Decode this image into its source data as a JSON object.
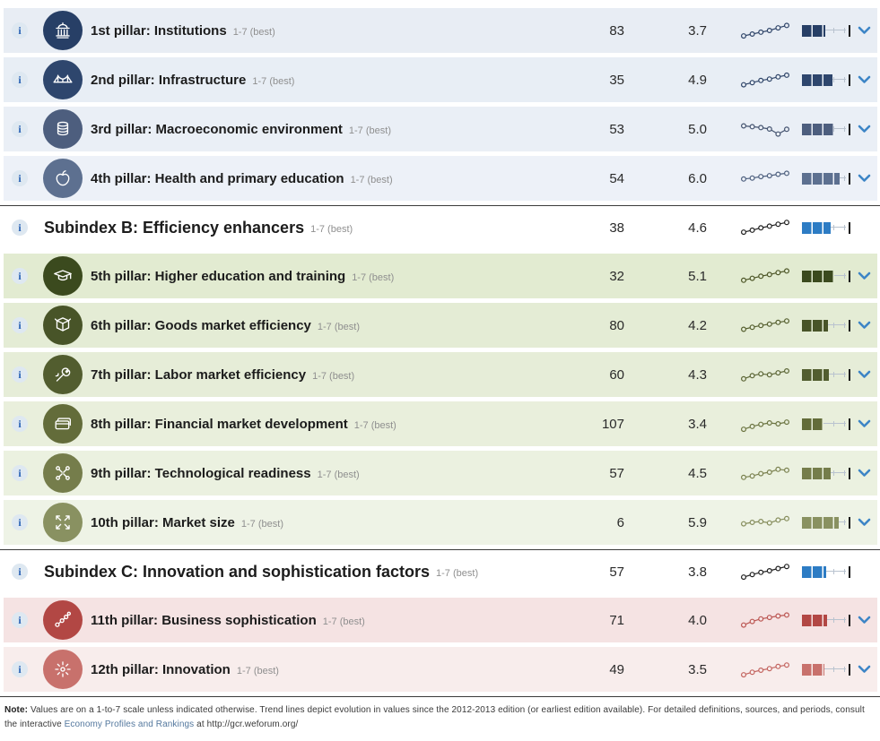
{
  "scale_label": "1-7 (best)",
  "info_label": "i",
  "chevron_color": "#3d85c6",
  "subindex_bar_color": "#2d7cc4",
  "rows": [
    {
      "type": "pillar",
      "label": "1st pillar: Institutions",
      "rank": "83",
      "score": "3.7",
      "icon": "institutions-icon",
      "colors": {
        "circle": "#273f66",
        "row": "#e8edf4",
        "bar": "#273f66",
        "spark": "#2e4468"
      },
      "spark": [
        0.12,
        0.25,
        0.38,
        0.5,
        0.68,
        0.85
      ],
      "chevron": true
    },
    {
      "type": "pillar",
      "label": "2nd pillar: Infrastructure",
      "rank": "35",
      "score": "4.9",
      "icon": "infrastructure-icon",
      "colors": {
        "circle": "#2e466d",
        "row": "#e8eef5",
        "bar": "#2e466d",
        "spark": "#2e4468"
      },
      "spark": [
        0.15,
        0.3,
        0.45,
        0.55,
        0.7,
        0.82
      ],
      "chevron": true
    },
    {
      "type": "pillar",
      "label": "3rd pillar: Macroeconomic environment",
      "rank": "53",
      "score": "5.0",
      "icon": "macroeconomic-icon",
      "colors": {
        "circle": "#4d5e7e",
        "row": "#eaeff6",
        "bar": "#4d5e7e",
        "spark": "#44536f"
      },
      "spark": [
        0.72,
        0.66,
        0.6,
        0.5,
        0.15,
        0.48
      ],
      "chevron": true
    },
    {
      "type": "pillar",
      "label": "4th pillar: Health and primary education",
      "rank": "54",
      "score": "6.0",
      "icon": "health-icon",
      "colors": {
        "circle": "#5d7090",
        "row": "#edf1f8",
        "bar": "#5d7090",
        "spark": "#4d5f7e"
      },
      "spark": [
        0.45,
        0.52,
        0.62,
        0.68,
        0.78,
        0.85
      ],
      "chevron": true
    },
    {
      "type": "subindex",
      "label": "Subindex B: Efficiency enhancers",
      "rank": "38",
      "score": "4.6",
      "colors": {
        "row": "#ffffff",
        "bar": "#2d7cc4",
        "spark": "#1f1f1f"
      },
      "spark": [
        0.18,
        0.32,
        0.48,
        0.6,
        0.74,
        0.86
      ],
      "chevron": false
    },
    {
      "type": "pillar",
      "label": "5th pillar: Higher education and training",
      "rank": "32",
      "score": "5.1",
      "icon": "higher-education-icon",
      "colors": {
        "circle": "#3b4a1e",
        "row": "#e2ebd1",
        "bar": "#3b4a1e",
        "spark": "#4c5526"
      },
      "spark": [
        0.2,
        0.34,
        0.48,
        0.6,
        0.74,
        0.85
      ],
      "chevron": true
    },
    {
      "type": "pillar",
      "label": "6th pillar: Goods market efficiency",
      "rank": "80",
      "score": "4.2",
      "icon": "goods-market-icon",
      "colors": {
        "circle": "#485428",
        "row": "#e4ecd5",
        "bar": "#485428",
        "spark": "#555f2f"
      },
      "spark": [
        0.22,
        0.36,
        0.48,
        0.58,
        0.7,
        0.8
      ],
      "chevron": true
    },
    {
      "type": "pillar",
      "label": "7th pillar: Labor market efficiency",
      "rank": "60",
      "score": "4.3",
      "icon": "labor-market-icon",
      "colors": {
        "circle": "#525d2f",
        "row": "#e6edd8",
        "bar": "#525d2f",
        "spark": "#5c6636"
      },
      "spark": [
        0.2,
        0.42,
        0.55,
        0.48,
        0.62,
        0.75
      ],
      "chevron": true
    },
    {
      "type": "pillar",
      "label": "8th pillar: Financial market development",
      "rank": "107",
      "score": "3.4",
      "icon": "financial-market-icon",
      "colors": {
        "circle": "#636c3a",
        "row": "#e9efdc",
        "bar": "#636c3a",
        "spark": "#6b7441"
      },
      "spark": [
        0.12,
        0.32,
        0.46,
        0.56,
        0.5,
        0.62
      ],
      "chevron": true
    },
    {
      "type": "pillar",
      "label": "9th pillar: Technological readiness",
      "rank": "57",
      "score": "4.5",
      "icon": "technological-icon",
      "colors": {
        "circle": "#757d4b",
        "row": "#ebf1e0",
        "bar": "#757d4b",
        "spark": "#7a814f"
      },
      "spark": [
        0.2,
        0.3,
        0.46,
        0.56,
        0.76,
        0.7
      ],
      "chevron": true
    },
    {
      "type": "pillar",
      "label": "10th pillar: Market size",
      "rank": "6",
      "score": "5.9",
      "icon": "market-size-icon",
      "colors": {
        "circle": "#899161",
        "row": "#eef3e6",
        "bar": "#899161",
        "spark": "#868d5c"
      },
      "spark": [
        0.4,
        0.5,
        0.56,
        0.46,
        0.66,
        0.76
      ],
      "chevron": true
    },
    {
      "type": "subindex",
      "label": "Subindex C: Innovation and sophistication factors",
      "rank": "57",
      "score": "3.8",
      "colors": {
        "row": "#ffffff",
        "bar": "#2d7cc4",
        "spark": "#1f1f1f"
      },
      "spark": [
        0.12,
        0.3,
        0.45,
        0.56,
        0.72,
        0.86
      ],
      "chevron": false
    },
    {
      "type": "pillar",
      "label": "11th pillar: Business sophistication",
      "rank": "71",
      "score": "4.0",
      "icon": "business-sophistication-icon",
      "colors": {
        "circle": "#b24744",
        "row": "#f5e3e3",
        "bar": "#b24744",
        "spark": "#bb5652"
      },
      "spark": [
        0.15,
        0.4,
        0.58,
        0.68,
        0.78,
        0.85
      ],
      "chevron": true
    },
    {
      "type": "pillar",
      "label": "12th pillar: Innovation",
      "rank": "49",
      "score": "3.5",
      "icon": "innovation-icon",
      "colors": {
        "circle": "#c8716c",
        "row": "#f8edec",
        "bar": "#c8716c",
        "spark": "#c3645f"
      },
      "spark": [
        0.12,
        0.3,
        0.44,
        0.55,
        0.7,
        0.8
      ],
      "chevron": true
    }
  ],
  "note": {
    "prefix": "Note:",
    "body1": " Values are on a 1-to-7 scale unless indicated otherwise. Trend lines depict evolution in values since the 2012-2013 edition (or earliest edition available). For detailed definitions, sources, and periods, consult the interactive ",
    "link_text": "Economy Profiles and Rankings",
    "body2": " at ",
    "url": "http://gcr.weforum.org/"
  }
}
